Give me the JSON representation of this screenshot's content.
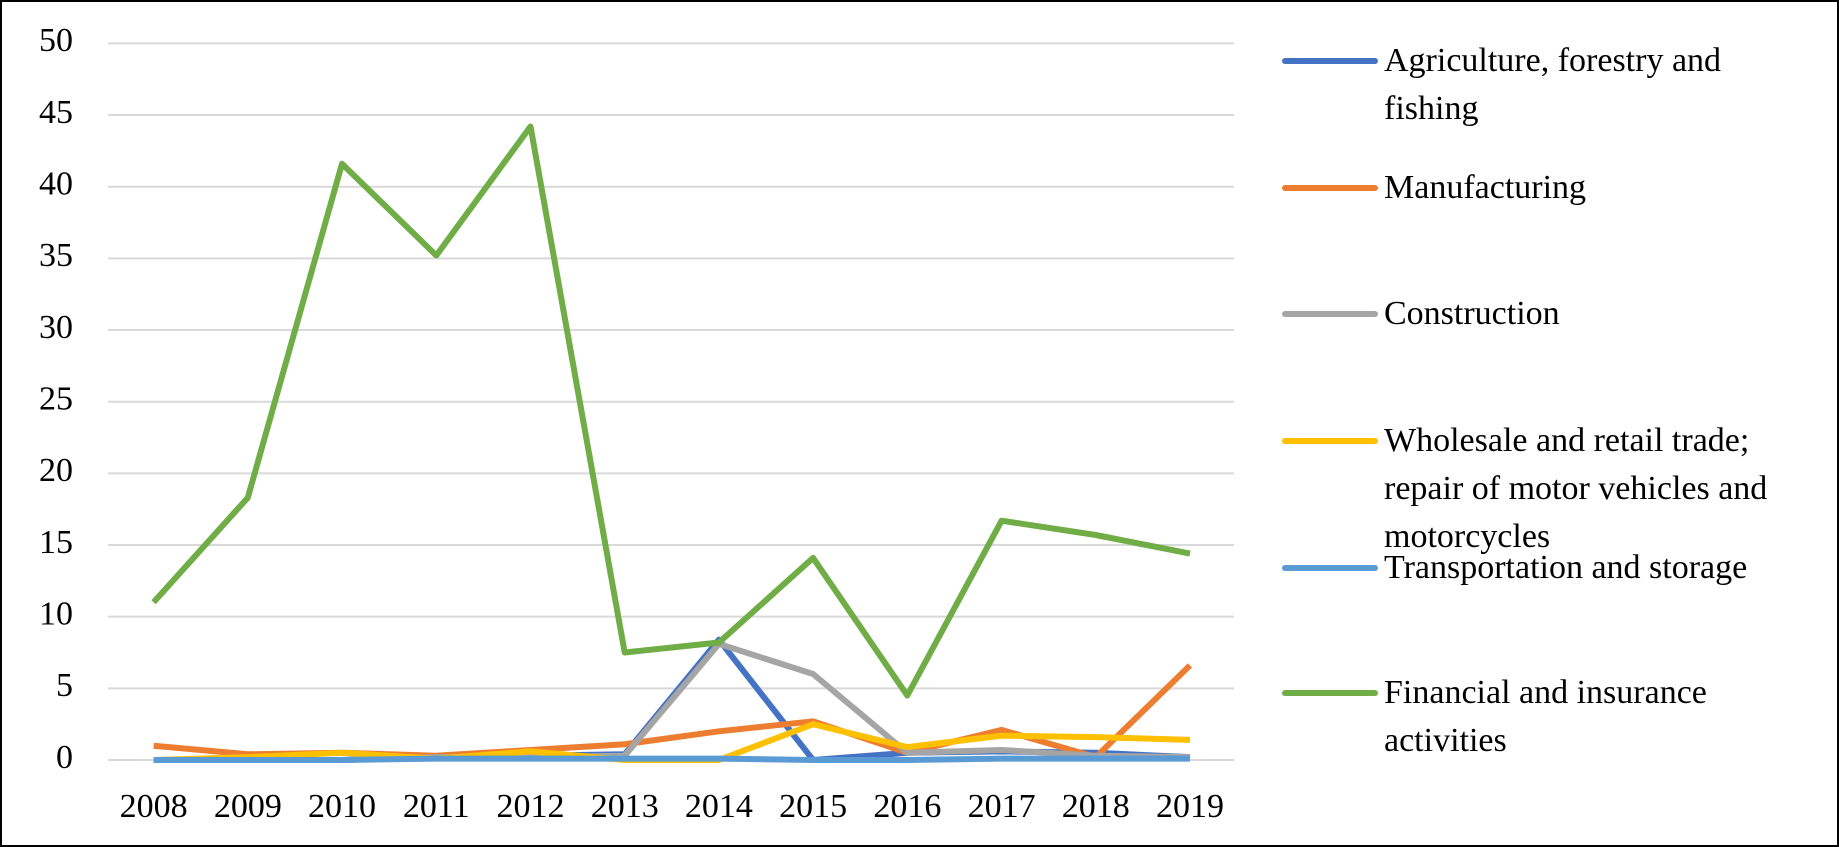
{
  "chart_data": {
    "type": "line",
    "categories": [
      "2008",
      "2009",
      "2010",
      "2011",
      "2012",
      "2013",
      "2014",
      "2015",
      "2016",
      "2017",
      "2018",
      "2019"
    ],
    "series": [
      {
        "name": "Agriculture, forestry and fishing",
        "color": "#4472c4",
        "values": [
          0,
          0,
          0,
          0.2,
          0.3,
          0.4,
          8.4,
          0,
          0.5,
          0.6,
          0.5,
          0.2
        ]
      },
      {
        "name": "Manufacturing",
        "color": "#ed7d31",
        "values": [
          1.0,
          0.4,
          0.5,
          0.3,
          0.7,
          1.1,
          2.0,
          2.7,
          0.5,
          2.1,
          0.2,
          6.6
        ]
      },
      {
        "name": "Construction",
        "color": "#a5a5a5",
        "values": [
          0,
          0,
          0,
          0.2,
          0.2,
          0.3,
          8.1,
          6.0,
          0.5,
          0.7,
          0.3,
          0.2
        ]
      },
      {
        "name": "Wholesale and retail trade; repair of motor vehicles and motorcycles",
        "color": "#ffc000",
        "values": [
          0,
          0.2,
          0.5,
          0.1,
          0.6,
          0,
          0,
          2.5,
          0.9,
          1.7,
          1.6,
          1.4
        ]
      },
      {
        "name": "Transportation and storage",
        "color": "#5b9bd5",
        "values": [
          0,
          0,
          0,
          0.1,
          0.1,
          0.1,
          0.1,
          0,
          0,
          0.1,
          0.1,
          0.1
        ]
      },
      {
        "name": "Financial and insurance activities",
        "color": "#70ad47",
        "values": [
          11,
          18.3,
          41.6,
          35.2,
          44.2,
          7.5,
          8.2,
          14.1,
          4.5,
          16.7,
          15.7,
          14.4
        ]
      }
    ],
    "ylim": [
      0,
      50
    ],
    "yticks": [
      0,
      5,
      10,
      15,
      20,
      25,
      30,
      35,
      40,
      45,
      50
    ],
    "grid": true,
    "legend": "right"
  }
}
